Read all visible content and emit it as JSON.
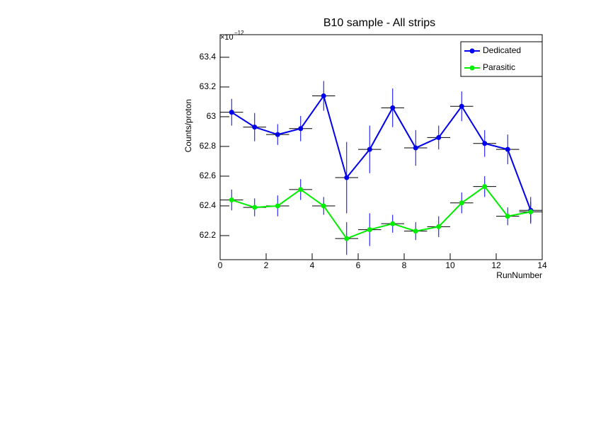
{
  "chart_data": {
    "type": "errorline",
    "title": "B10 sample - All strips",
    "x_label": "RunNumber",
    "y_label": "Counts/proton",
    "y_multiplier": "×10",
    "y_exponent": "−12",
    "x": [
      0.5,
      1.5,
      2.5,
      3.5,
      4.5,
      5.5,
      6.5,
      7.5,
      8.5,
      9.5,
      10.5,
      11.5,
      12.5,
      13.5
    ],
    "xerr": 0.5,
    "series": [
      {
        "name": "Dedicated",
        "color": "#0000ee",
        "values": [
          63.03,
          62.93,
          62.88,
          62.92,
          63.14,
          62.59,
          62.78,
          63.06,
          62.79,
          62.86,
          63.07,
          62.82,
          62.78,
          62.37
        ],
        "errors": [
          0.09,
          0.095,
          0.07,
          0.085,
          0.1,
          0.24,
          0.16,
          0.13,
          0.12,
          0.08,
          0.1,
          0.09,
          0.1,
          0.09
        ]
      },
      {
        "name": "Parasitic",
        "color": "#00ee00",
        "values": [
          62.44,
          62.39,
          62.4,
          62.51,
          62.4,
          62.18,
          62.24,
          62.28,
          62.23,
          62.26,
          62.42,
          62.53,
          62.33,
          62.36
        ],
        "errors": [
          0.07,
          0.06,
          0.07,
          0.07,
          0.06,
          0.11,
          0.11,
          0.06,
          0.06,
          0.07,
          0.07,
          0.07,
          0.06,
          0.07
        ]
      }
    ],
    "error_color": "#0000ee",
    "xerr_color": "#000000",
    "xlim": [
      0,
      14
    ],
    "xticks": [
      0,
      2,
      4,
      6,
      8,
      10,
      12,
      14
    ],
    "ylim": [
      62.038,
      63.552
    ],
    "yticks": [
      62.2,
      62.4,
      62.6,
      62.8,
      63,
      63.2,
      63.4
    ],
    "legend": "top-right"
  }
}
